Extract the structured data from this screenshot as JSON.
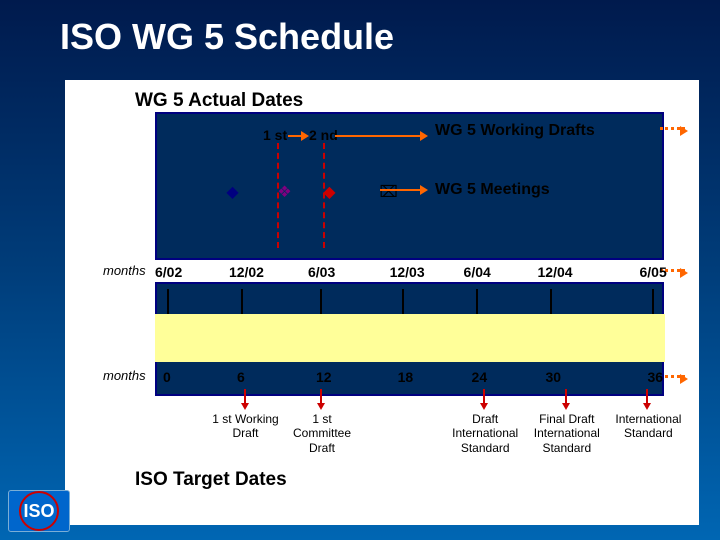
{
  "title": "ISO WG 5 Schedule",
  "actual_title": "WG 5 Actual Dates",
  "target_title": "ISO Target Dates",
  "drafts": {
    "first": "1 st",
    "second": "2 nd",
    "label": "WG 5 Working Drafts"
  },
  "meetings_label": "WG 5 Meetings",
  "months_label": "months",
  "timeline": {
    "dates": [
      "6/02",
      "12/02",
      "6/03",
      "12/03",
      "6/04",
      "12/04",
      "6/05"
    ],
    "months": [
      "0",
      "6",
      "12",
      "18",
      "24",
      "30",
      "36"
    ],
    "positions": [
      0,
      14.5,
      30,
      46,
      60.5,
      75,
      95
    ]
  },
  "drafts_pos": {
    "first": 24,
    "second": 33
  },
  "meeting_markers": [
    {
      "x": 14,
      "shape": "diamond",
      "color": "#000080"
    },
    {
      "x": 24,
      "shape": "diamond4",
      "color": "#800080"
    },
    {
      "x": 33,
      "shape": "diamond",
      "color": "#cc0000"
    },
    {
      "x": 44,
      "shape": "xbox",
      "color": "#000"
    }
  ],
  "milestones": [
    {
      "x": 15,
      "text": "1 st Working Draft"
    },
    {
      "x": 30,
      "text": "1 st Committee Draft"
    },
    {
      "x": 62,
      "text": "Draft International Standard"
    },
    {
      "x": 78,
      "text": "Final Draft International Standard"
    },
    {
      "x": 94,
      "text": "International Standard"
    }
  ],
  "logo_text": "ISO",
  "colors": {
    "bg_top": "#001a4d",
    "bg_bot": "#0066b3",
    "box": "#002b5c",
    "yellow": "#ffff99",
    "arrow": "#ff6600",
    "red": "#c00"
  }
}
